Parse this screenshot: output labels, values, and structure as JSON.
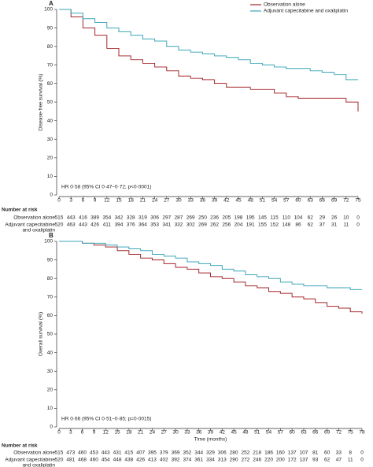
{
  "chart_data": [
    {
      "type": "line",
      "panel": "A",
      "ylabel": "Disease-free survival (%)",
      "annotation": "HR 0·58 (95% CI 0·47–0·72; p<0·0001)",
      "x": [
        0,
        3,
        6,
        9,
        12,
        15,
        18,
        21,
        24,
        27,
        30,
        33,
        36,
        39,
        42,
        45,
        48,
        51,
        54,
        57,
        60,
        63,
        66,
        69,
        72,
        75
      ],
      "series": [
        {
          "name": "Observation alone",
          "color": "#a3262a",
          "values": [
            100,
            96,
            90,
            86,
            79,
            75,
            73,
            71,
            69,
            67,
            64,
            63,
            62,
            60,
            58,
            58,
            57,
            57,
            55,
            53,
            52,
            52,
            52,
            52,
            50,
            45
          ]
        },
        {
          "name": "Adjuvant capecitabine and oxaliplatin",
          "color": "#3aa6b9",
          "values": [
            100,
            98,
            95,
            93,
            90,
            88,
            86,
            84,
            83,
            80,
            78,
            77,
            76,
            75,
            74,
            73,
            71,
            70,
            69,
            68,
            68,
            67,
            66,
            65,
            62,
            62
          ]
        }
      ],
      "xlim": [
        0,
        75
      ],
      "xticks": [
        0,
        3,
        6,
        9,
        12,
        15,
        18,
        21,
        24,
        27,
        30,
        33,
        36,
        39,
        42,
        45,
        48,
        51,
        54,
        57,
        60,
        63,
        66,
        69,
        72,
        75
      ],
      "ylim": [
        0,
        100
      ],
      "yticks": [
        0,
        10,
        20,
        30,
        40,
        50,
        60,
        70,
        80,
        90,
        100
      ],
      "legend": "top-right",
      "risk_table": {
        "title": "Number at risk",
        "rows": [
          {
            "label": [
              "Observation alone"
            ],
            "values": [
              515,
              443,
              416,
              389,
              354,
              342,
              328,
              319,
              306,
              297,
              287,
              269,
              250,
              236,
              205,
              198,
              195,
              145,
              115,
              110,
              104,
              62,
              29,
              26,
              10,
              0
            ]
          },
          {
            "label": [
              "Adjuvant capecitabine",
              "and oxaliplatin"
            ],
            "values": [
              520,
              463,
              443,
              426,
              411,
              394,
              376,
              364,
              353,
              341,
              332,
              302,
              269,
              262,
              256,
              204,
              191,
              155,
              152,
              148,
              86,
              62,
              37,
              31,
              11,
              0
            ]
          }
        ]
      }
    },
    {
      "type": "line",
      "panel": "B",
      "ylabel": "Overall survival (%)",
      "xlabel": "Time (months)",
      "annotation": "HR 0·66 (95% CI 0·51–0·85; p=0·0015)",
      "x": [
        0,
        3,
        6,
        9,
        12,
        15,
        18,
        21,
        24,
        27,
        30,
        33,
        36,
        39,
        42,
        45,
        48,
        51,
        54,
        57,
        60,
        63,
        66,
        69,
        72,
        75,
        78
      ],
      "series": [
        {
          "name": "Observation alone",
          "color": "#a3262a",
          "values": [
            100,
            100,
            99,
            98,
            97,
            95,
            93,
            91,
            90,
            88,
            86,
            85,
            83,
            81,
            80,
            78,
            76,
            75,
            73,
            72,
            70,
            69,
            67,
            65,
            64,
            62,
            61
          ]
        },
        {
          "name": "Adjuvant capecitabine and oxaliplatin",
          "color": "#3aa6b9",
          "values": [
            100,
            100,
            99,
            99,
            98,
            97,
            96,
            95,
            93,
            92,
            91,
            89,
            88,
            87,
            85,
            84,
            82,
            81,
            80,
            78,
            77,
            76,
            76,
            75,
            75,
            74,
            74
          ]
        }
      ],
      "xlim": [
        0,
        78
      ],
      "xticks": [
        0,
        3,
        6,
        9,
        12,
        15,
        18,
        21,
        24,
        27,
        30,
        33,
        36,
        39,
        42,
        45,
        48,
        51,
        54,
        57,
        60,
        63,
        66,
        69,
        72,
        75,
        78
      ],
      "ylim": [
        0,
        100
      ],
      "yticks": [
        0,
        10,
        20,
        30,
        40,
        50,
        60,
        70,
        80,
        90,
        100
      ],
      "risk_table": {
        "title": "Number at risk",
        "rows": [
          {
            "label": [
              "Observation alone"
            ],
            "values": [
              515,
              473,
              460,
              453,
              443,
              431,
              415,
              407,
              395,
              379,
              369,
              352,
              344,
              329,
              306,
              280,
              252,
              218,
              186,
              160,
              137,
              107,
              81,
              60,
              33,
              8,
              0
            ]
          },
          {
            "label": [
              "Adjuvant capecitabine",
              "and oxaliplatin"
            ],
            "values": [
              520,
              481,
              468,
              460,
              454,
              448,
              438,
              426,
              413,
              402,
              392,
              374,
              361,
              334,
              313,
              290,
              272,
              246,
              220,
              200,
              172,
              137,
              93,
              62,
              47,
              11,
              0
            ]
          }
        ]
      }
    }
  ]
}
